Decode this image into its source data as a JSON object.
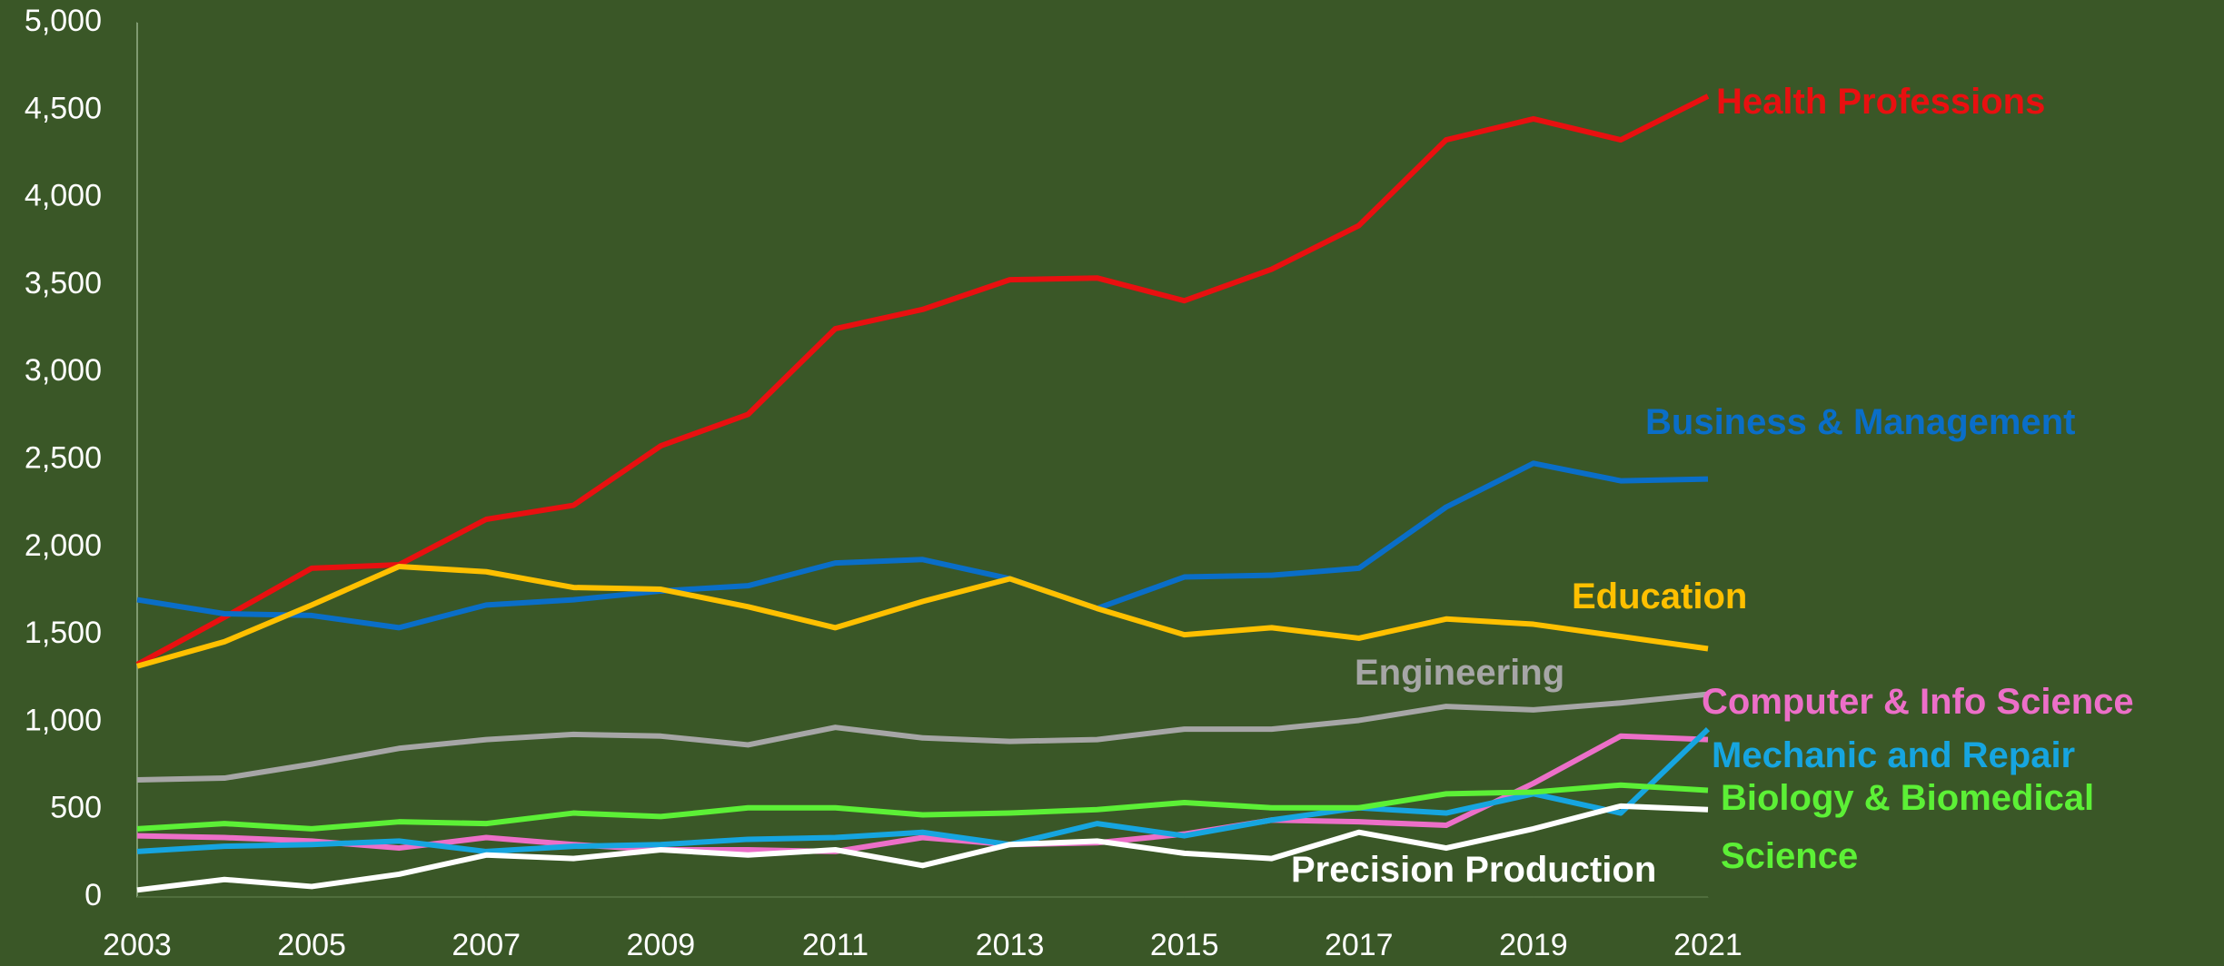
{
  "chart_data": {
    "type": "line",
    "x": [
      2003,
      2004,
      2005,
      2006,
      2007,
      2008,
      2009,
      2010,
      2011,
      2012,
      2013,
      2014,
      2015,
      2016,
      2017,
      2018,
      2019,
      2020,
      2021
    ],
    "xlim": [
      2003,
      2021
    ],
    "xticks": [
      2003,
      2005,
      2007,
      2009,
      2011,
      2013,
      2015,
      2017,
      2019,
      2021
    ],
    "ylim": [
      0,
      5000
    ],
    "yticks": [
      0,
      500,
      {
        "value": 1000,
        "label": "1,000"
      },
      {
        "value": 1500,
        "label": "1,500"
      },
      {
        "value": 2000,
        "label": "2,000"
      },
      {
        "value": 2500,
        "label": "2,500"
      },
      {
        "value": 3000,
        "label": "3,000"
      },
      {
        "value": 3500,
        "label": "3,500"
      },
      {
        "value": 4000,
        "label": "4,000"
      },
      {
        "value": 4500,
        "label": "4,500"
      },
      {
        "value": 5000,
        "label": "5,000"
      }
    ],
    "grid": false,
    "series": [
      {
        "name": "Health Professions",
        "color": "#e81010",
        "values": [
          1330,
          1600,
          1880,
          1900,
          2160,
          2240,
          2580,
          2760,
          3250,
          3360,
          3530,
          3540,
          3410,
          3590,
          3840,
          4330,
          4450,
          4330,
          4580
        ]
      },
      {
        "name": "Business & Management",
        "color": "#0a6ec8",
        "values": [
          1700,
          1620,
          1610,
          1540,
          1670,
          1700,
          1750,
          1780,
          1910,
          1930,
          1820,
          1650,
          1830,
          1840,
          1880,
          2230,
          2480,
          2380,
          2390
        ]
      },
      {
        "name": "Education",
        "color": "#ffc000",
        "values": [
          1320,
          1460,
          1670,
          1890,
          1860,
          1770,
          1760,
          1660,
          1540,
          1690,
          1820,
          1650,
          1500,
          1540,
          1480,
          1590,
          1560,
          1490,
          1420
        ]
      },
      {
        "name": "Engineering",
        "color": "#a6a6a6",
        "values": [
          670,
          680,
          760,
          850,
          900,
          930,
          920,
          870,
          970,
          910,
          890,
          900,
          960,
          960,
          1010,
          1090,
          1070,
          1110,
          1160
        ]
      },
      {
        "name": "Computer & Info Science",
        "color": "#ec6fc8",
        "values": [
          350,
          340,
          320,
          280,
          340,
          300,
          270,
          270,
          260,
          340,
          300,
          310,
          360,
          440,
          430,
          410,
          650,
          920,
          900
        ]
      },
      {
        "name": "Mechanic and Repair",
        "color": "#16a5e0",
        "values": [
          260,
          290,
          300,
          320,
          260,
          290,
          300,
          330,
          340,
          370,
          300,
          420,
          350,
          440,
          510,
          480,
          590,
          480,
          960
        ]
      },
      {
        "name": "Biology & Biomedical Science",
        "color": "#5cf036",
        "values": [
          390,
          420,
          390,
          430,
          420,
          480,
          460,
          510,
          510,
          470,
          480,
          500,
          540,
          510,
          510,
          590,
          600,
          640,
          610
        ]
      },
      {
        "name": "Precision Production",
        "color": "#ffffff",
        "values": [
          40,
          100,
          60,
          130,
          240,
          220,
          270,
          240,
          270,
          180,
          300,
          320,
          250,
          220,
          370,
          280,
          390,
          520,
          500
        ]
      }
    ]
  }
}
